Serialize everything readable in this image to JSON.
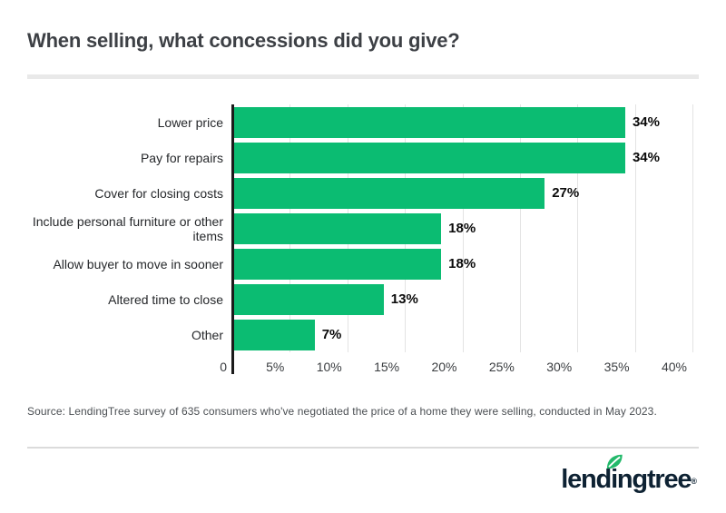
{
  "header": {
    "title": "When selling, what concessions did you give?"
  },
  "chart_data": {
    "type": "bar",
    "orientation": "horizontal",
    "title": "When selling, what concessions did you give?",
    "categories": [
      "Lower price",
      "Pay for repairs",
      "Cover for closing costs",
      "Include personal furniture or other items",
      "Allow buyer to move in sooner",
      "Altered time to close",
      "Other"
    ],
    "values": [
      34,
      34,
      27,
      18,
      18,
      13,
      7
    ],
    "value_labels": [
      "34%",
      "34%",
      "27%",
      "18%",
      "18%",
      "13%",
      "7%"
    ],
    "x_ticks": [
      {
        "label": "0",
        "value": 0
      },
      {
        "label": "5%",
        "value": 5
      },
      {
        "label": "10%",
        "value": 10
      },
      {
        "label": "15%",
        "value": 15
      },
      {
        "label": "20%",
        "value": 20
      },
      {
        "label": "25%",
        "value": 25
      },
      {
        "label": "30%",
        "value": 30
      },
      {
        "label": "35%",
        "value": 35
      },
      {
        "label": "40%",
        "value": 40
      }
    ],
    "xlim": [
      0,
      40
    ],
    "xlabel": "",
    "ylabel": "",
    "grid": true,
    "legend": false,
    "bar_color": "#0bbc72"
  },
  "footer": {
    "source": "Source: LendingTree survey of 635 consumers who've negotiated the price of a home they were selling, conducted in May 2023.",
    "logo": {
      "name": "lendingtree",
      "part1": "lend",
      "part2": "i",
      "part3": "ngtree",
      "registered": "®"
    }
  },
  "colors": {
    "bar_green": "#0bbc72",
    "leaf_green": "#23b96b",
    "logo_navy": "#0e2233",
    "title_text": "#3d4045",
    "gridline": "#e3e3e3",
    "axis": "#1b1b1b",
    "divider_top": "#e9e9e9",
    "divider_bottom": "#dbdbdb"
  }
}
